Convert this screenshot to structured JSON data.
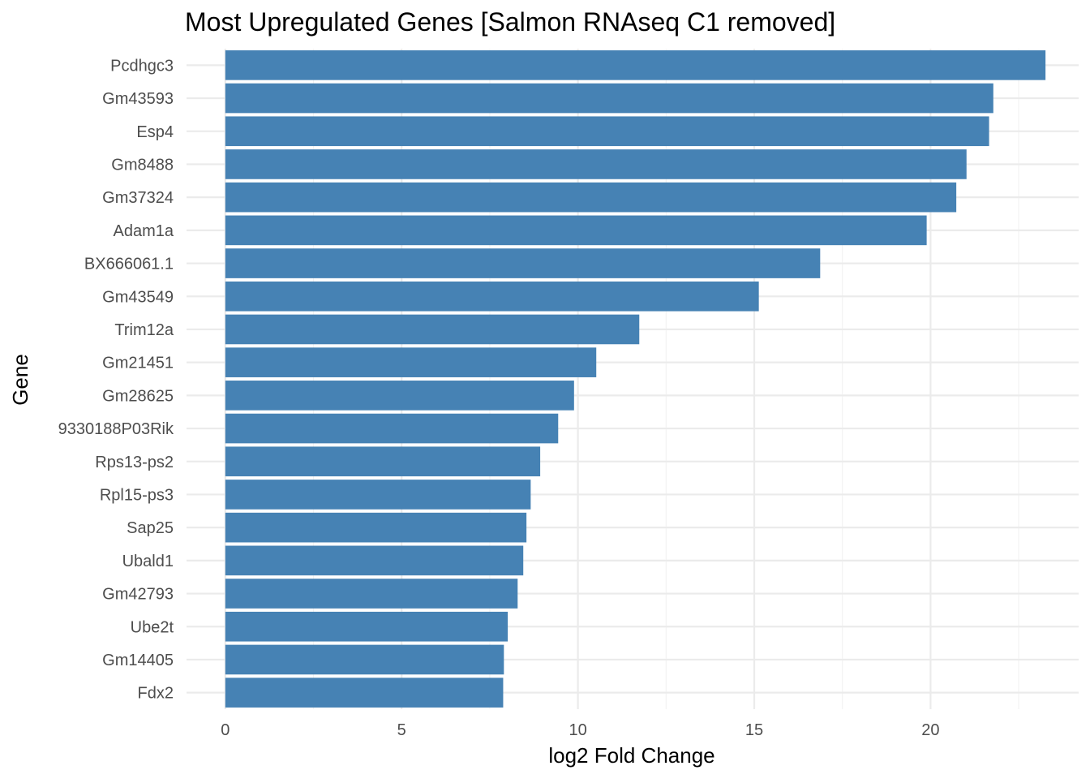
{
  "chart_data": {
    "type": "bar",
    "orientation": "horizontal",
    "title": "Most Upregulated Genes [Salmon RNAseq C1 removed]",
    "xlabel": "log2 Fold Change",
    "ylabel": "Gene",
    "xlim": [
      -1.1,
      24.2
    ],
    "xticks": [
      0,
      5,
      10,
      15,
      20
    ],
    "grid": true,
    "bar_color": "#4682b4",
    "categories": [
      "Pcdhgc3",
      "Gm43593",
      "Esp4",
      "Gm8488",
      "Gm37324",
      "Adam1a",
      "BX666061.1",
      "Gm43549",
      "Trim12a",
      "Gm21451",
      "Gm28625",
      "9330188P03Rik",
      "Rps13-ps2",
      "Rpl15-ps3",
      "Sap25",
      "Ubald1",
      "Gm42793",
      "Ube2t",
      "Gm14405",
      "Fdx2"
    ],
    "values": [
      23.26,
      21.78,
      21.66,
      21.02,
      20.73,
      19.89,
      16.87,
      15.13,
      11.74,
      10.52,
      9.89,
      9.44,
      8.93,
      8.66,
      8.54,
      8.45,
      8.29,
      8.01,
      7.9,
      7.88
    ]
  }
}
